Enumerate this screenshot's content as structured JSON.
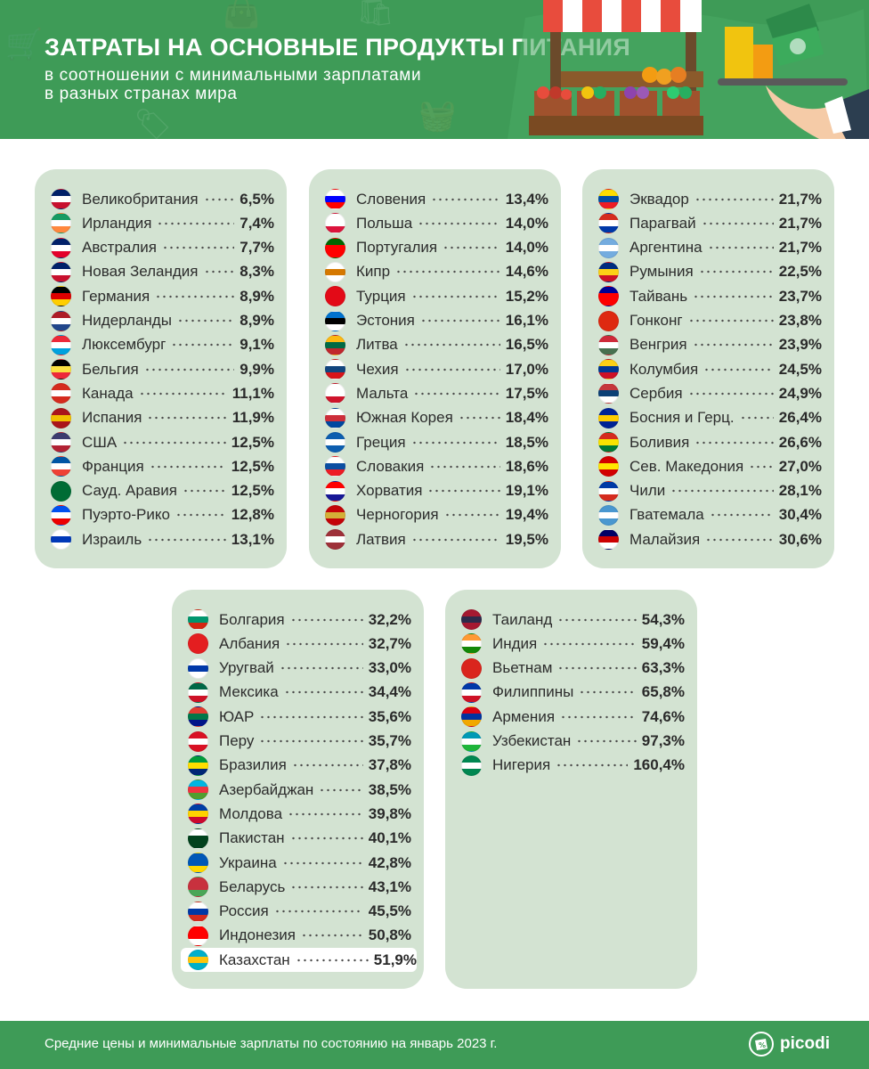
{
  "header": {
    "title": "ЗАТРАТЫ НА ОСНОВНЫЕ ПРОДУКТЫ ПИТАНИЯ",
    "subtitle_line1": "в соотношении с минимальными зарплатами",
    "subtitle_line2": "в разных странах мира",
    "illustration_icons": [
      "market-stall-icon",
      "money-stack-icon",
      "serving-hand-icon"
    ]
  },
  "panels": [
    {
      "rows": [
        {
          "country": "Великобритания",
          "value": "6,5%",
          "flag": [
            "#012169",
            "#ffffff",
            "#c8102e"
          ]
        },
        {
          "country": "Ирландия",
          "value": "7,4%",
          "flag": [
            "#169b62",
            "#ffffff",
            "#ff883e"
          ]
        },
        {
          "country": "Австралия",
          "value": "7,7%",
          "flag": [
            "#012169",
            "#ffffff",
            "#e4002b"
          ]
        },
        {
          "country": "Новая Зеландия",
          "value": "8,3%",
          "flag": [
            "#012169",
            "#ffffff",
            "#c8102e"
          ]
        },
        {
          "country": "Германия",
          "value": "8,9%",
          "flag": [
            "#000000",
            "#dd0000",
            "#ffce00"
          ]
        },
        {
          "country": "Нидерланды",
          "value": "8,9%",
          "flag": [
            "#ae1c28",
            "#ffffff",
            "#21468b"
          ]
        },
        {
          "country": "Люксембург",
          "value": "9,1%",
          "flag": [
            "#ed2939",
            "#ffffff",
            "#00a1de"
          ]
        },
        {
          "country": "Бельгия",
          "value": "9,9%",
          "flag": [
            "#000000",
            "#fae042",
            "#ed2939"
          ]
        },
        {
          "country": "Канада",
          "value": "11,1%",
          "flag": [
            "#d52b1e",
            "#ffffff",
            "#d52b1e"
          ]
        },
        {
          "country": "Испания",
          "value": "11,9%",
          "flag": [
            "#aa151b",
            "#f1bf00",
            "#aa151b"
          ]
        },
        {
          "country": "США",
          "value": "12,5%",
          "flag": [
            "#3c3b6e",
            "#ffffff",
            "#b22234"
          ]
        },
        {
          "country": "Франция",
          "value": "12,5%",
          "flag": [
            "#0055a4",
            "#ffffff",
            "#ef4135"
          ]
        },
        {
          "country": "Сауд. Аравия",
          "value": "12,5%",
          "flag": [
            "#006c35",
            "#006c35",
            "#006c35"
          ]
        },
        {
          "country": "Пуэрто-Рико",
          "value": "12,8%",
          "flag": [
            "#0050f0",
            "#ffffff",
            "#ed0000"
          ]
        },
        {
          "country": "Израиль",
          "value": "13,1%",
          "flag": [
            "#ffffff",
            "#0038b8",
            "#ffffff"
          ]
        }
      ]
    },
    {
      "rows": [
        {
          "country": "Словения",
          "value": "13,4%",
          "flag": [
            "#ffffff",
            "#0000ff",
            "#ff0000"
          ]
        },
        {
          "country": "Польша",
          "value": "14,0%",
          "flag": [
            "#ffffff",
            "#ffffff",
            "#dc143c"
          ]
        },
        {
          "country": "Португалия",
          "value": "14,0%",
          "flag": [
            "#006600",
            "#ff0000",
            "#ff0000"
          ]
        },
        {
          "country": "Кипр",
          "value": "14,6%",
          "flag": [
            "#ffffff",
            "#d57800",
            "#ffffff"
          ]
        },
        {
          "country": "Турция",
          "value": "15,2%",
          "flag": [
            "#e30a17",
            "#e30a17",
            "#e30a17"
          ]
        },
        {
          "country": "Эстония",
          "value": "16,1%",
          "flag": [
            "#0072ce",
            "#000000",
            "#ffffff"
          ]
        },
        {
          "country": "Литва",
          "value": "16,5%",
          "flag": [
            "#fdb913",
            "#006a44",
            "#c1272d"
          ]
        },
        {
          "country": "Чехия",
          "value": "17,0%",
          "flag": [
            "#ffffff",
            "#11457e",
            "#d7141a"
          ]
        },
        {
          "country": "Мальта",
          "value": "17,5%",
          "flag": [
            "#ffffff",
            "#ffffff",
            "#cf142b"
          ]
        },
        {
          "country": "Южная Корея",
          "value": "18,4%",
          "flag": [
            "#ffffff",
            "#cd2e3a",
            "#0047a0"
          ]
        },
        {
          "country": "Греция",
          "value": "18,5%",
          "flag": [
            "#0d5eaf",
            "#ffffff",
            "#0d5eaf"
          ]
        },
        {
          "country": "Словакия",
          "value": "18,6%",
          "flag": [
            "#ffffff",
            "#0b4ea2",
            "#ee1c25"
          ]
        },
        {
          "country": "Хорватия",
          "value": "19,1%",
          "flag": [
            "#ff0000",
            "#ffffff",
            "#171796"
          ]
        },
        {
          "country": "Черногория",
          "value": "19,4%",
          "flag": [
            "#c40308",
            "#d4af37",
            "#c40308"
          ]
        },
        {
          "country": "Латвия",
          "value": "19,5%",
          "flag": [
            "#9e3039",
            "#ffffff",
            "#9e3039"
          ]
        }
      ]
    },
    {
      "rows": [
        {
          "country": "Эквадор",
          "value": "21,7%",
          "flag": [
            "#ffdd00",
            "#034ea2",
            "#ed1c24"
          ]
        },
        {
          "country": "Парагвай",
          "value": "21,7%",
          "flag": [
            "#d52b1e",
            "#ffffff",
            "#0038a8"
          ]
        },
        {
          "country": "Аргентина",
          "value": "21,7%",
          "flag": [
            "#74acdf",
            "#ffffff",
            "#74acdf"
          ]
        },
        {
          "country": "Румыния",
          "value": "22,5%",
          "flag": [
            "#002b7f",
            "#fcd116",
            "#ce1126"
          ]
        },
        {
          "country": "Тайвань",
          "value": "23,7%",
          "flag": [
            "#000095",
            "#fe0000",
            "#fe0000"
          ]
        },
        {
          "country": "Гонконг",
          "value": "23,8%",
          "flag": [
            "#de2910",
            "#de2910",
            "#de2910"
          ]
        },
        {
          "country": "Венгрия",
          "value": "23,9%",
          "flag": [
            "#ce2939",
            "#ffffff",
            "#477050"
          ]
        },
        {
          "country": "Колумбия",
          "value": "24,5%",
          "flag": [
            "#fcd116",
            "#003893",
            "#ce1126"
          ]
        },
        {
          "country": "Сербия",
          "value": "24,9%",
          "flag": [
            "#c6363c",
            "#0c4076",
            "#ffffff"
          ]
        },
        {
          "country": "Босния и Герц.",
          "value": "26,4%",
          "flag": [
            "#002395",
            "#fecb00",
            "#002395"
          ]
        },
        {
          "country": "Боливия",
          "value": "26,6%",
          "flag": [
            "#d52b1e",
            "#f9e300",
            "#007934"
          ]
        },
        {
          "country": "Сев. Македония",
          "value": "27,0%",
          "flag": [
            "#d20000",
            "#ffe600",
            "#d20000"
          ]
        },
        {
          "country": "Чили",
          "value": "28,1%",
          "flag": [
            "#0039a6",
            "#ffffff",
            "#d52b1e"
          ]
        },
        {
          "country": "Гватемала",
          "value": "30,4%",
          "flag": [
            "#4997d0",
            "#ffffff",
            "#4997d0"
          ]
        },
        {
          "country": "Малайзия",
          "value": "30,6%",
          "flag": [
            "#010066",
            "#cc0001",
            "#ffffff"
          ]
        }
      ]
    },
    {
      "rows": [
        {
          "country": "Болгария",
          "value": "32,2%",
          "flag": [
            "#ffffff",
            "#00966e",
            "#d62612"
          ]
        },
        {
          "country": "Албания",
          "value": "32,7%",
          "flag": [
            "#e41e20",
            "#e41e20",
            "#e41e20"
          ]
        },
        {
          "country": "Уругвай",
          "value": "33,0%",
          "flag": [
            "#ffffff",
            "#0038a8",
            "#ffffff"
          ]
        },
        {
          "country": "Мексика",
          "value": "34,4%",
          "flag": [
            "#006847",
            "#ffffff",
            "#ce1126"
          ]
        },
        {
          "country": "ЮАР",
          "value": "35,6%",
          "flag": [
            "#e03c31",
            "#007749",
            "#001489"
          ]
        },
        {
          "country": "Перу",
          "value": "35,7%",
          "flag": [
            "#d91023",
            "#ffffff",
            "#d91023"
          ]
        },
        {
          "country": "Бразилия",
          "value": "37,8%",
          "flag": [
            "#009c3b",
            "#ffdf00",
            "#002776"
          ]
        },
        {
          "country": "Азербайджан",
          "value": "38,5%",
          "flag": [
            "#00b5e2",
            "#ef3340",
            "#509e2f"
          ]
        },
        {
          "country": "Молдова",
          "value": "39,8%",
          "flag": [
            "#003da5",
            "#ffd200",
            "#cc092f"
          ]
        },
        {
          "country": "Пакистан",
          "value": "40,1%",
          "flag": [
            "#ffffff",
            "#01411c",
            "#01411c"
          ]
        },
        {
          "country": "Украина",
          "value": "42,8%",
          "flag": [
            "#0057b7",
            "#0057b7",
            "#ffd700"
          ]
        },
        {
          "country": "Беларусь",
          "value": "43,1%",
          "flag": [
            "#c8313e",
            "#c8313e",
            "#4aa657"
          ]
        },
        {
          "country": "Россия",
          "value": "45,5%",
          "flag": [
            "#ffffff",
            "#0039a6",
            "#d52b1e"
          ]
        },
        {
          "country": "Индонезия",
          "value": "50,8%",
          "flag": [
            "#ff0000",
            "#ff0000",
            "#ffffff"
          ]
        },
        {
          "country": "Казахстан",
          "value": "51,9%",
          "flag": [
            "#00afca",
            "#fec50c",
            "#00afca"
          ],
          "highlighted": true
        }
      ]
    },
    {
      "rows": [
        {
          "country": "Таиланд",
          "value": "54,3%",
          "flag": [
            "#a51931",
            "#2d2a4a",
            "#a51931"
          ]
        },
        {
          "country": "Индия",
          "value": "59,4%",
          "flag": [
            "#ff9933",
            "#ffffff",
            "#138808"
          ]
        },
        {
          "country": "Вьетнам",
          "value": "63,3%",
          "flag": [
            "#da251d",
            "#da251d",
            "#da251d"
          ]
        },
        {
          "country": "Филиппины",
          "value": "65,8%",
          "flag": [
            "#0038a8",
            "#ffffff",
            "#ce1126"
          ]
        },
        {
          "country": "Армения",
          "value": "74,6%",
          "flag": [
            "#d90012",
            "#0033a0",
            "#f2a800"
          ]
        },
        {
          "country": "Узбекистан",
          "value": "97,3%",
          "flag": [
            "#0099b5",
            "#ffffff",
            "#1eb53a"
          ]
        },
        {
          "country": "Нигерия",
          "value": "160,4%",
          "flag": [
            "#008751",
            "#ffffff",
            "#008751"
          ]
        }
      ]
    }
  ],
  "footer": {
    "note": "Средние цены и минимальные зарплаты по состоянию на январь 2023 г.",
    "logo_text": "picodi",
    "logo_icon": "picodi-logo-icon"
  },
  "colors": {
    "header_green": "#3e9b57",
    "panel_bg": "#d3e3d2",
    "highlight_row": "#ffffff"
  }
}
